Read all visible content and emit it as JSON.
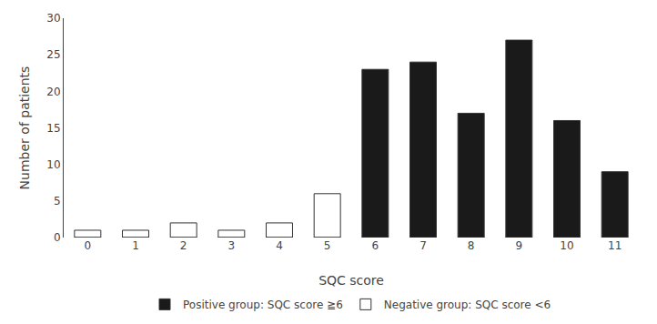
{
  "chart_data": {
    "type": "bar",
    "categories": [
      "0",
      "1",
      "2",
      "3",
      "4",
      "5",
      "6",
      "7",
      "8",
      "9",
      "10",
      "11"
    ],
    "series": [
      {
        "name": "Negative group: SQC score <6",
        "color": "#ffffff",
        "values": [
          1,
          1,
          2,
          1,
          2,
          6,
          0,
          0,
          0,
          0,
          0,
          0
        ]
      },
      {
        "name": "Positive group: SQC score ≧6",
        "color": "#1a1a1a",
        "values": [
          0,
          0,
          0,
          0,
          0,
          0,
          23,
          24,
          17,
          27,
          16,
          9
        ]
      }
    ],
    "xlabel": "SQC score",
    "ylabel": "Number of patients",
    "ylim": [
      0,
      30
    ],
    "yticks": [
      0,
      5,
      10,
      15,
      20,
      25,
      30
    ],
    "grid": false,
    "legend": "bottom"
  }
}
